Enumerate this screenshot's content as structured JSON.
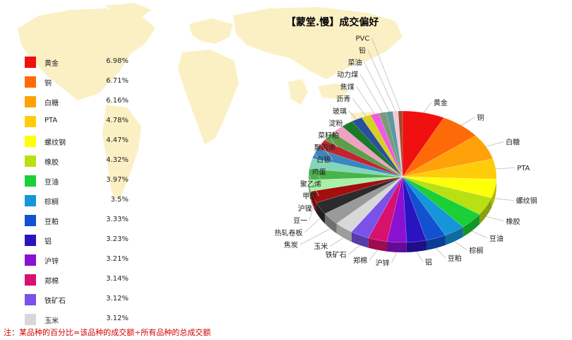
{
  "chart_data": {
    "type": "pie",
    "style": "3d",
    "title": "【蒙堂.慢】成交偏好",
    "legend": "left",
    "slices": [
      {
        "name": "黄金",
        "value": 6.98,
        "label": "6.98%",
        "color": "#f01010"
      },
      {
        "name": "铜",
        "value": 6.71,
        "label": "6.71%",
        "color": "#ff6a08"
      },
      {
        "name": "白糖",
        "value": 6.16,
        "label": "6.16%",
        "color": "#ffa20a"
      },
      {
        "name": "PTA",
        "value": 4.78,
        "label": "4.78%",
        "color": "#ffcc0a"
      },
      {
        "name": "螺纹钢",
        "value": 4.47,
        "label": "4.47%",
        "color": "#ffff0a"
      },
      {
        "name": "橡胶",
        "value": 4.32,
        "label": "4.32%",
        "color": "#b9e012"
      },
      {
        "name": "豆油",
        "value": 3.97,
        "label": "3.97%",
        "color": "#1ad036"
      },
      {
        "name": "棕榈",
        "value": 3.5,
        "label": "3.5%",
        "color": "#1496d8"
      },
      {
        "name": "豆粕",
        "value": 3.33,
        "label": "3.33%",
        "color": "#1252d0"
      },
      {
        "name": "铝",
        "value": 3.23,
        "label": "3.23%",
        "color": "#2a14c0"
      },
      {
        "name": "沪锌",
        "value": 3.21,
        "label": "3.21%",
        "color": "#8a10d2"
      },
      {
        "name": "郑棉",
        "value": 3.14,
        "label": "3.14%",
        "color": "#d8106e"
      },
      {
        "name": "铁矿石",
        "value": 3.12,
        "label": "3.12%",
        "color": "#7a52ea"
      },
      {
        "name": "玉米",
        "value": 3.12,
        "label": "3.12%",
        "color": "#d8d8d8"
      },
      {
        "name": "焦炭",
        "value": 3.0,
        "label": "",
        "color": "#9a9a9a"
      },
      {
        "name": "热轧卷板",
        "value": 2.9,
        "label": "",
        "color": "#2b2b2b"
      },
      {
        "name": "豆一",
        "value": 2.8,
        "label": "",
        "color": "#a30e0e"
      },
      {
        "name": "沪镍",
        "value": 2.7,
        "label": "",
        "color": "#a8f2a8"
      },
      {
        "name": "甲醇",
        "value": 2.6,
        "label": "",
        "color": "#48b34a"
      },
      {
        "name": "聚乙烯",
        "value": 2.5,
        "label": "",
        "color": "#7fd8b8"
      },
      {
        "name": "鸡蛋",
        "value": 2.4,
        "label": "",
        "color": "#3a86c0"
      },
      {
        "name": "白银",
        "value": 2.3,
        "label": "",
        "color": "#c0262f"
      },
      {
        "name": "聚丙烯",
        "value": 2.2,
        "label": "",
        "color": "#5aa04a"
      },
      {
        "name": "菜籽粕",
        "value": 2.1,
        "label": "",
        "color": "#f0a0c0"
      },
      {
        "name": "淀粉",
        "value": 2.0,
        "label": "",
        "color": "#1a7a2a"
      },
      {
        "name": "玻璃",
        "value": 1.8,
        "label": "",
        "color": "#2a4ea0"
      },
      {
        "name": "沥青",
        "value": 1.6,
        "label": "",
        "color": "#d8d020"
      },
      {
        "name": "焦煤",
        "value": 1.4,
        "label": "",
        "color": "#f05ae0"
      },
      {
        "name": "动力煤",
        "value": 1.2,
        "label": "",
        "color": "#7a9a7a"
      },
      {
        "name": "菜油",
        "value": 1.1,
        "label": "",
        "color": "#5a9aa0"
      },
      {
        "name": "铅",
        "value": 0.9,
        "label": "",
        "color": "#f0c8d8"
      },
      {
        "name": "PVC",
        "value": 0.7,
        "label": "",
        "color": "#a04a2a"
      }
    ]
  },
  "note": "注：某品种的百分比=该品种的成交额÷所有品种的总成交额"
}
